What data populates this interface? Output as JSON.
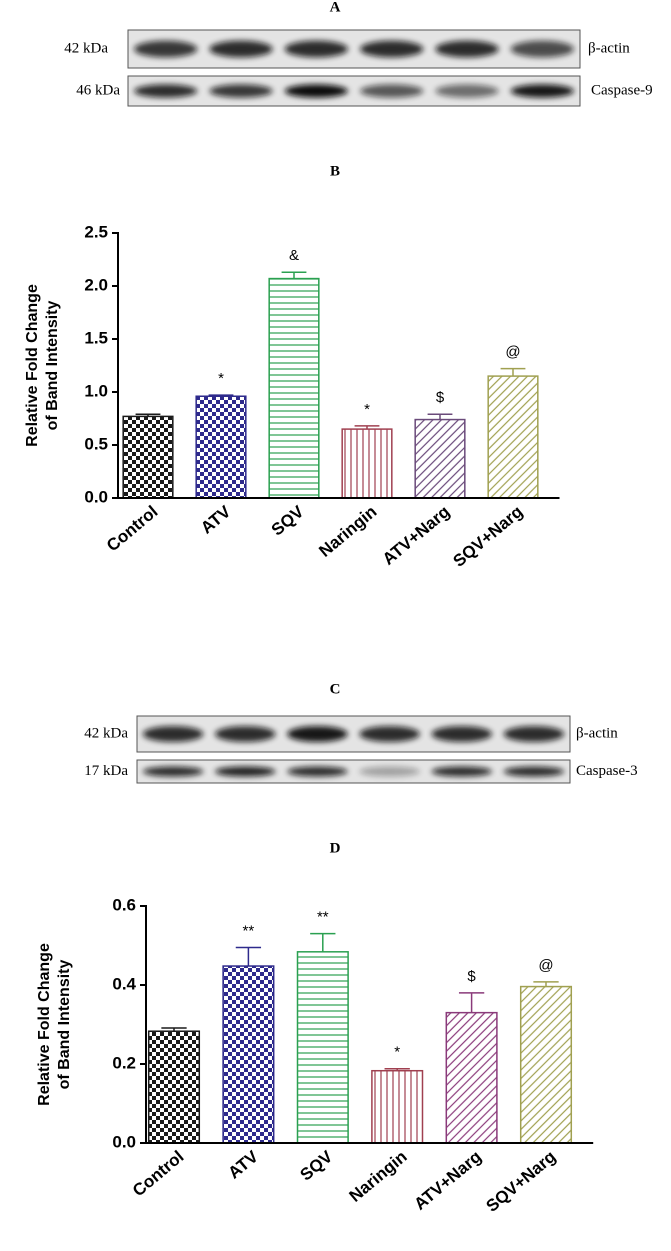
{
  "blots": [
    {
      "panel": "A",
      "rows": [
        {
          "size": "42 kDa",
          "protein": "β-actin"
        },
        {
          "size": "46 kDa",
          "protein": "Caspase-9"
        }
      ]
    },
    {
      "panel": "C",
      "rows": [
        {
          "size": "42 kDa",
          "protein": "β-actin"
        },
        {
          "size": "17 kDa",
          "protein": "Caspase-3"
        }
      ]
    }
  ],
  "chart_data": [
    {
      "type": "bar",
      "title": "B",
      "ylabel": [
        "Relative Fold Change",
        "of Band Intensity"
      ],
      "categories": [
        "Control",
        "ATV",
        "SQV",
        "Naringin",
        "ATV+Narg",
        "SQV+Narg"
      ],
      "values": [
        0.77,
        0.96,
        2.07,
        0.65,
        0.74,
        1.15
      ],
      "errors": [
        0.02,
        0.01,
        0.06,
        0.03,
        0.05,
        0.07
      ],
      "annotations": [
        null,
        "*",
        "&",
        "*",
        "$",
        "@"
      ],
      "colors": [
        "#1a1a1a",
        "#2e2a8c",
        "#2aa050",
        "#a04050",
        "#6a4a7a",
        "#a0a050"
      ],
      "ylim": [
        0,
        2.5
      ],
      "yticks": [
        {
          "value": 0,
          "label": "0.0"
        },
        0.5,
        {
          "value": 1,
          "label": "1.0"
        },
        1.5,
        {
          "value": 2,
          "label": "2.0"
        },
        2.5
      ]
    },
    {
      "type": "bar",
      "title": "D",
      "ylabel": [
        "Relative Fold Change",
        "of Band Intensity"
      ],
      "categories": [
        "Control",
        "ATV",
        "SQV",
        "Naringin",
        "ATV+Narg",
        "SQV+Narg"
      ],
      "values": [
        0.283,
        0.448,
        0.484,
        0.183,
        0.33,
        0.396
      ],
      "errors": [
        0.008,
        0.047,
        0.046,
        0.005,
        0.05,
        0.012
      ],
      "annotations": [
        null,
        "**",
        "**",
        "*",
        "$",
        "@"
      ],
      "colors": [
        "#1a1a1a",
        "#2e2a8c",
        "#2aa050",
        "#a04050",
        "#8a3a7a",
        "#a0a050"
      ],
      "ylim": [
        0,
        0.6
      ],
      "yticks": [
        {
          "value": 0,
          "label": "0.0"
        },
        0.2,
        0.4,
        0.6
      ]
    }
  ]
}
